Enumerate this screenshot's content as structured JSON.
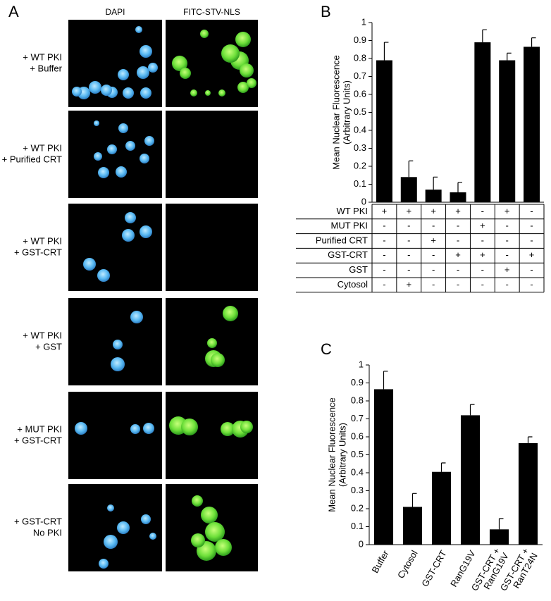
{
  "panel_a": {
    "panel": "A",
    "columns": [
      "DAPI",
      "FITC-STV-NLS"
    ],
    "rows": [
      [
        "+ WT PKI",
        "+ Buffer"
      ],
      [
        "+ WT PKI",
        "+ Purified CRT"
      ],
      [
        "+ WT PKI",
        "+ GST-CRT"
      ],
      [
        "+ WT PKI",
        "+ GST"
      ],
      [
        "+ MUT PKI",
        "+ GST-CRT"
      ],
      [
        "+ GST-CRT",
        "No PKI"
      ]
    ]
  },
  "chart_data": [
    {
      "type": "bar",
      "panel": "B",
      "y_label": [
        "Mean Nuclear Fluorescence",
        "(Arbitrary Units)"
      ],
      "values": [
        0.79,
        0.14,
        0.07,
        0.055,
        0.89,
        0.79,
        0.865
      ],
      "errors": [
        0.1,
        0.09,
        0.07,
        0.055,
        0.07,
        0.04,
        0.05
      ],
      "color": "#000000",
      "ylim": [
        0,
        1
      ],
      "yticks": [
        0,
        0.1,
        0.2,
        0.3,
        0.4,
        0.5,
        0.6,
        0.7,
        0.8,
        0.9,
        1
      ],
      "conditions": [
        {
          "name": "WT PKI",
          "values": [
            "+",
            "+",
            "+",
            "+",
            "-",
            "+",
            "-"
          ]
        },
        {
          "name": "MUT PKI",
          "values": [
            "-",
            "-",
            "-",
            "-",
            "+",
            "-",
            "-"
          ]
        },
        {
          "name": "Purified CRT",
          "values": [
            "-",
            "-",
            "+",
            "-",
            "-",
            "-",
            "-"
          ]
        },
        {
          "name": "GST-CRT",
          "values": [
            "-",
            "-",
            "-",
            "+",
            "+",
            "-",
            "+"
          ]
        },
        {
          "name": "GST",
          "values": [
            "-",
            "-",
            "-",
            "-",
            "-",
            "+",
            "-"
          ]
        },
        {
          "name": "Cytosol",
          "values": [
            "-",
            "+",
            "-",
            "-",
            "-",
            "-",
            "-"
          ]
        }
      ]
    },
    {
      "type": "bar",
      "panel": "C",
      "y_label": [
        "Mean Nuclear Fluorescence",
        "(Arbitrary Units)"
      ],
      "categories": [
        [
          "Buffer"
        ],
        [
          "Cytosol"
        ],
        [
          "GST-CRT"
        ],
        [
          "RanG19V"
        ],
        [
          "GST-CRT +",
          "RanG19V"
        ],
        [
          "GST-CRT +",
          "RanT24N"
        ]
      ],
      "values": [
        0.865,
        0.21,
        0.405,
        0.72,
        0.085,
        0.565
      ],
      "errors": [
        0.1,
        0.075,
        0.05,
        0.06,
        0.06,
        0.035
      ],
      "color": "#000000",
      "ylim": [
        0,
        1
      ],
      "yticks": [
        0,
        0.1,
        0.2,
        0.3,
        0.4,
        0.5,
        0.6,
        0.7,
        0.8,
        0.9,
        1
      ]
    }
  ]
}
